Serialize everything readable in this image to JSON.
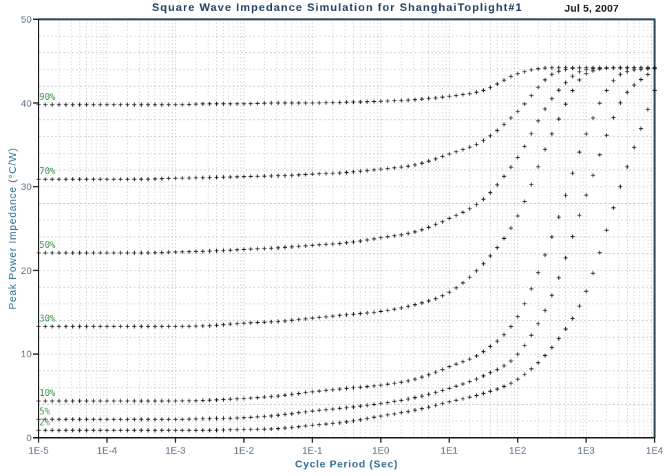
{
  "header": {
    "title": "Square Wave Impedance Simulation for ShanghaiToplight#1",
    "date": "Jul 5, 2007"
  },
  "colors": {
    "title": "#1c3e60",
    "date": "#111111",
    "axis_title": "#2f6e96",
    "tick_label": "#57697b",
    "series_label": "#3f8f4a",
    "frame_dark": "#2c4a58",
    "axis_line": "#1a1a1a",
    "grid_horizontal": "#bfc6ce",
    "grid_minor_vertical": "#c8cdd5",
    "grid_decade_vertical": "#a9b1bb",
    "marker": "#161616",
    "background": "#ffffff"
  },
  "chart_data": {
    "type": "scatter",
    "title": "Square Wave Impedance Simulation for ShanghaiToplight#1",
    "date_annotation": "Jul 5, 2007",
    "xlabel": "Cycle Period (Sec)",
    "ylabel": "Peak Power Impedance (°C/W)",
    "x_scale": "log",
    "xlim": [
      1e-05,
      10000
    ],
    "ylim": [
      0,
      50
    ],
    "x_tick_labels": [
      "1E-5",
      "1E-4",
      "1E-3",
      "1E-2",
      "1E-1",
      "1E0",
      "1E1",
      "1E2",
      "1E3",
      "1E4"
    ],
    "y_ticks": [
      0,
      10,
      20,
      30,
      40,
      50
    ],
    "grid": {
      "horizontal_step": 2,
      "vertical": "log minor 2-9 each decade",
      "style": "dashed"
    },
    "marker": "+",
    "points_per_decade_rendered": 10,
    "legend_position": "labels at left end of each curve",
    "x": [
      1e-05,
      3.16e-05,
      0.0001,
      0.000316,
      0.001,
      0.00316,
      0.01,
      0.0316,
      0.1,
      0.316,
      1,
      3.16,
      10,
      31.6,
      100,
      316,
      1000,
      3160,
      10000
    ],
    "series": [
      {
        "label": "90%",
        "duty_cycle_percent": 90,
        "values": [
          39.8,
          39.8,
          39.8,
          39.8,
          39.8,
          39.9,
          39.9,
          40.0,
          40.0,
          40.1,
          40.2,
          40.4,
          40.8,
          41.5,
          43.5,
          44.2,
          44.2,
          44.2,
          44.2
        ]
      },
      {
        "label": "70%",
        "duty_cycle_percent": 70,
        "values": [
          30.9,
          30.9,
          30.9,
          30.9,
          31.0,
          31.1,
          31.2,
          31.3,
          31.5,
          31.7,
          32.1,
          32.6,
          33.9,
          35.5,
          39.0,
          43.4,
          44.2,
          44.2,
          44.2
        ]
      },
      {
        "label": "50%",
        "duty_cycle_percent": 50,
        "values": [
          22.1,
          22.1,
          22.1,
          22.1,
          22.2,
          22.3,
          22.5,
          22.7,
          23.0,
          23.3,
          23.9,
          24.6,
          26.2,
          28.5,
          33.5,
          40.5,
          44.0,
          44.2,
          44.2
        ]
      },
      {
        "label": "30%",
        "duty_cycle_percent": 30,
        "values": [
          13.3,
          13.3,
          13.3,
          13.3,
          13.3,
          13.4,
          13.7,
          13.9,
          14.3,
          14.7,
          15.1,
          15.9,
          17.4,
          20.8,
          26.5,
          36.3,
          43.5,
          44.2,
          44.2
        ]
      },
      {
        "label": "10%",
        "duty_cycle_percent": 10,
        "values": [
          4.4,
          4.4,
          4.4,
          4.4,
          4.4,
          4.5,
          4.7,
          5.0,
          5.5,
          5.9,
          6.3,
          7.0,
          8.5,
          10.3,
          14.5,
          24.0,
          36.3,
          43.4,
          44.2
        ]
      },
      {
        "label": "5%",
        "duty_cycle_percent": 5,
        "values": [
          2.2,
          2.2,
          2.2,
          2.2,
          2.2,
          2.3,
          2.4,
          2.7,
          3.2,
          3.6,
          4.1,
          4.8,
          5.9,
          7.4,
          10.0,
          17.0,
          29.0,
          40.0,
          44.1
        ]
      },
      {
        "label": "2%",
        "duty_cycle_percent": 2,
        "values": [
          0.9,
          0.9,
          0.9,
          0.9,
          0.9,
          0.9,
          1.0,
          1.1,
          1.5,
          1.9,
          2.6,
          3.3,
          4.3,
          5.3,
          7.0,
          10.8,
          17.5,
          30.0,
          41.5
        ]
      }
    ]
  }
}
